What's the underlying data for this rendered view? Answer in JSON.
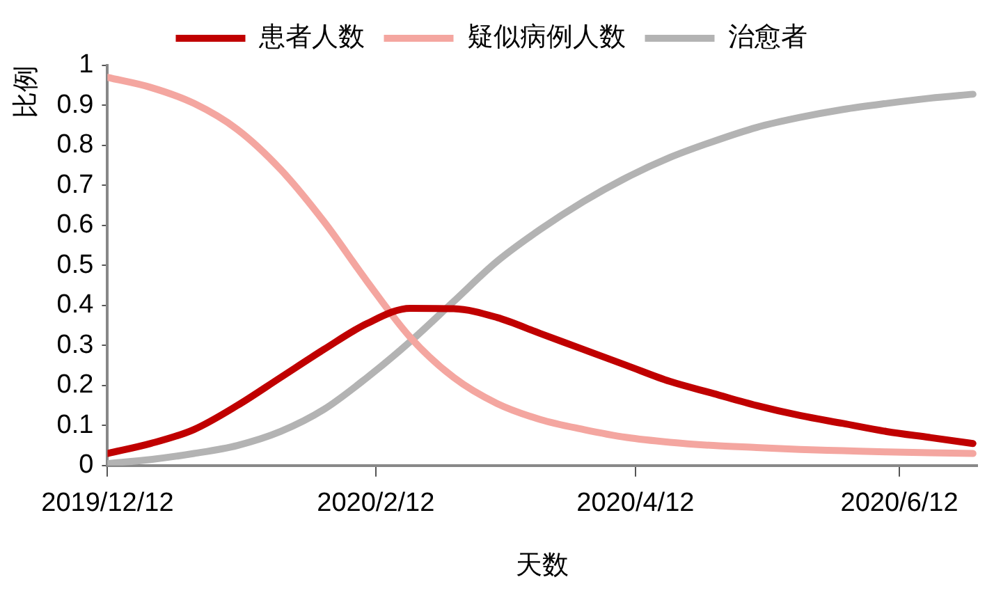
{
  "chart_data": {
    "type": "line",
    "xlabel": "天数",
    "ylabel": "比例",
    "x": [
      "2019-12-12",
      "2019-12-22",
      "2020-01-01",
      "2020-01-11",
      "2020-01-21",
      "2020-01-31",
      "2020-02-10",
      "2020-02-20",
      "2020-03-01",
      "2020-03-11",
      "2020-03-21",
      "2020-03-31",
      "2020-04-10",
      "2020-04-20",
      "2020-04-30",
      "2020-05-10",
      "2020-05-20",
      "2020-05-30",
      "2020-06-09",
      "2020-06-19",
      "2020-06-29"
    ],
    "series": [
      {
        "name": "患者人数",
        "color": "#c00000",
        "values": [
          0.03,
          0.055,
          0.09,
          0.15,
          0.22,
          0.29,
          0.355,
          0.393,
          0.392,
          0.37,
          0.33,
          0.29,
          0.25,
          0.21,
          0.18,
          0.15,
          0.125,
          0.105,
          0.085,
          0.07,
          0.055
        ]
      },
      {
        "name": "疑似病例人数",
        "color": "#f4a6a0",
        "values": [
          0.97,
          0.945,
          0.905,
          0.84,
          0.74,
          0.61,
          0.46,
          0.32,
          0.22,
          0.155,
          0.115,
          0.09,
          0.07,
          0.058,
          0.05,
          0.045,
          0.04,
          0.037,
          0.034,
          0.032,
          0.03
        ]
      },
      {
        "name": "治愈者",
        "color": "#b3b3b3",
        "values": [
          0.005,
          0.015,
          0.03,
          0.05,
          0.085,
          0.14,
          0.22,
          0.31,
          0.41,
          0.51,
          0.59,
          0.66,
          0.72,
          0.77,
          0.81,
          0.845,
          0.87,
          0.89,
          0.905,
          0.918,
          0.928
        ]
      }
    ],
    "xlim": [
      "2019-12-12",
      "2020-06-30"
    ],
    "xticks": [
      {
        "value": "2019-12-12",
        "label": "2019/12/12"
      },
      {
        "value": "2020-02-12",
        "label": "2020/2/12"
      },
      {
        "value": "2020-04-12",
        "label": "2020/4/12"
      },
      {
        "value": "2020-06-12",
        "label": "2020/6/12"
      }
    ],
    "ylim": [
      0,
      1
    ],
    "yticks": [
      0,
      0.1,
      0.2,
      0.3,
      0.4,
      0.5,
      0.6,
      0.7,
      0.8,
      0.9,
      1
    ],
    "grid": false,
    "legend": "top",
    "marker": "none",
    "line_style": "solid"
  }
}
